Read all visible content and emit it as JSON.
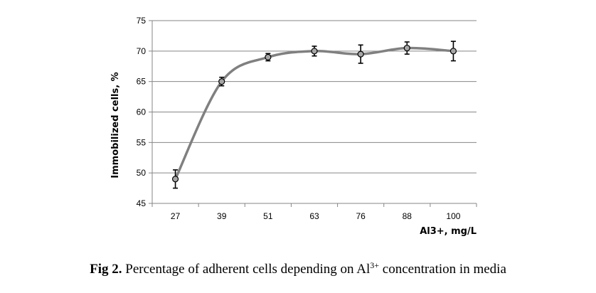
{
  "chart_data": {
    "type": "line",
    "categories": [
      "27",
      "39",
      "51",
      "63",
      "76",
      "88",
      "100"
    ],
    "series": [
      {
        "name": "Immobilized cells",
        "values": [
          49,
          65,
          69,
          70,
          69.5,
          70.5,
          70
        ],
        "error": [
          1.5,
          0.7,
          0.6,
          0.8,
          1.5,
          1.0,
          1.6
        ]
      }
    ],
    "xlabel": "Al3+, mg/L",
    "ylabel": "Immobilized cells, %",
    "ylim": [
      45,
      75
    ],
    "yticks": [
      45,
      50,
      55,
      60,
      65,
      70,
      75
    ],
    "grid": true,
    "line_color": "#808080",
    "marker_color": "#a6a6a6"
  },
  "caption": {
    "label": "Fig 2.",
    "text_before": " Percentage of adherent cells depending on Al",
    "superscript": "3+",
    "text_after": " concentration in media"
  }
}
